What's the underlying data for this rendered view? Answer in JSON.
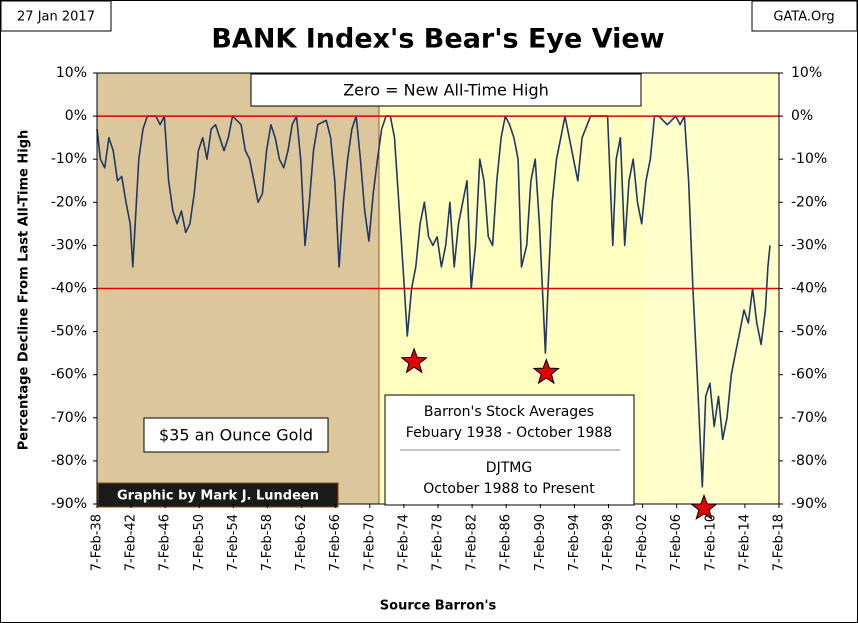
{
  "chart_data": {
    "type": "line",
    "title": "BANK Index's Bear's Eye View",
    "date_stamp": "27 Jan 2017",
    "source_tag": "GATA.Org",
    "ylabel": "Percentage Decline From Last All-Time High",
    "xlabel": "Source Barron's",
    "annotations": [
      "Zero = New All-Time High",
      "$35 an Ounce Gold",
      "Barron's Stock Averages",
      "Febuary 1938 - October 1988",
      "DJTMG",
      "October 1988 to Present",
      "Graphic by Mark J. Lundeen"
    ],
    "xlim": [
      1938.1,
      2018.1
    ],
    "ylim": [
      -90,
      10
    ],
    "xticks": [
      {
        "value": 1938.1,
        "label": "7-Feb-38"
      },
      {
        "value": 1942.1,
        "label": "7-Feb-42"
      },
      {
        "value": 1946.1,
        "label": "7-Feb-46"
      },
      {
        "value": 1950.1,
        "label": "7-Feb-50"
      },
      {
        "value": 1954.1,
        "label": "7-Feb-54"
      },
      {
        "value": 1958.1,
        "label": "7-Feb-58"
      },
      {
        "value": 1962.1,
        "label": "7-Feb-62"
      },
      {
        "value": 1966.1,
        "label": "7-Feb-66"
      },
      {
        "value": 1970.1,
        "label": "7-Feb-70"
      },
      {
        "value": 1974.1,
        "label": "7-Feb-74"
      },
      {
        "value": 1978.1,
        "label": "7-Feb-78"
      },
      {
        "value": 1982.1,
        "label": "7-Feb-82"
      },
      {
        "value": 1986.1,
        "label": "7-Feb-86"
      },
      {
        "value": 1990.1,
        "label": "7-Feb-90"
      },
      {
        "value": 1994.1,
        "label": "7-Feb-94"
      },
      {
        "value": 1998.1,
        "label": "7-Feb-98"
      },
      {
        "value": 2002.1,
        "label": "7-Feb-02"
      },
      {
        "value": 2006.1,
        "label": "7-Feb-06"
      },
      {
        "value": 2010.1,
        "label": "7-Feb-10"
      },
      {
        "value": 2014.1,
        "label": "7-Feb-14"
      },
      {
        "value": 2018.1,
        "label": "7-Feb-18"
      }
    ],
    "yticks": [
      {
        "value": 10,
        "label": "10%"
      },
      {
        "value": 0,
        "label": "0%"
      },
      {
        "value": -10,
        "label": "-10%"
      },
      {
        "value": -20,
        "label": "-20%"
      },
      {
        "value": -30,
        "label": "-30%"
      },
      {
        "value": -40,
        "label": "-40%"
      },
      {
        "value": -50,
        "label": "-50%"
      },
      {
        "value": -60,
        "label": "-60%"
      },
      {
        "value": -70,
        "label": "-70%"
      },
      {
        "value": -80,
        "label": "-80%"
      },
      {
        "value": -90,
        "label": "-90%"
      }
    ],
    "reference_lines": {
      "values": [
        0,
        -40
      ],
      "color": "#e00000"
    },
    "markers": {
      "x": [
        1975.3,
        1990.8,
        2009.3
      ],
      "values": [
        -57,
        -59.5,
        -91
      ],
      "color": "#e00000"
    },
    "x": [
      1938.1,
      1938.5,
      1939,
      1939.5,
      1940,
      1940.5,
      1941,
      1941.5,
      1942,
      1942.3,
      1943,
      1943.5,
      1944,
      1945,
      1945.5,
      1946,
      1946.5,
      1947,
      1947.5,
      1948,
      1948.5,
      1949,
      1949.5,
      1950,
      1950.5,
      1951,
      1951.5,
      1952,
      1953,
      1953.5,
      1954,
      1955,
      1955.5,
      1956,
      1956.5,
      1957,
      1957.5,
      1958,
      1958.5,
      1959,
      1959.5,
      1960,
      1960.5,
      1961,
      1961.5,
      1962,
      1962.5,
      1963,
      1963.5,
      1964,
      1965,
      1965.5,
      1966,
      1966.5,
      1967,
      1967.5,
      1968,
      1968.5,
      1969,
      1969.5,
      1970,
      1970.5,
      1971,
      1971.5,
      1972,
      1972.5,
      1973,
      1973.5,
      1974,
      1974.5,
      1975,
      1975.5,
      1976,
      1976.5,
      1977,
      1977.5,
      1978,
      1978.5,
      1979,
      1979.5,
      1980,
      1980.5,
      1981,
      1981.5,
      1982,
      1982.5,
      1983,
      1983.5,
      1984,
      1984.5,
      1985,
      1985.5,
      1986,
      1986.5,
      1987,
      1987.5,
      1987.9,
      1988.5,
      1989,
      1989.5,
      1990,
      1990.7,
      1991,
      1991.5,
      1992,
      1992.5,
      1993,
      1994,
      1994.5,
      1995,
      1996,
      1997,
      1998,
      1998.6,
      1999,
      1999.5,
      2000,
      2000.5,
      2001,
      2001.5,
      2002,
      2002.5,
      2003,
      2003.5,
      2004,
      2005,
      2006,
      2006.5,
      2007,
      2007.5,
      2008,
      2008.5,
      2009.1,
      2009.5,
      2010,
      2010.5,
      2011,
      2011.5,
      2012,
      2012.5,
      2013,
      2013.5,
      2014,
      2014.5,
      2015,
      2015.5,
      2016,
      2016.5,
      2016.8,
      2017.05
    ],
    "series": [
      {
        "name": "BANK Index",
        "color": "#203864",
        "values": [
          -3,
          -10,
          -12,
          -5,
          -8,
          -15,
          -14,
          -20,
          -25,
          -35,
          -10,
          -3,
          0,
          0,
          -2,
          0,
          -15,
          -22,
          -25,
          -22,
          -27,
          -25,
          -18,
          -8,
          -5,
          -10,
          -3,
          -2,
          -8,
          -5,
          0,
          -2,
          -8,
          -10,
          -15,
          -20,
          -18,
          -8,
          -2,
          -5,
          -10,
          -12,
          -8,
          -2,
          0,
          -10,
          -30,
          -20,
          -8,
          -2,
          -1,
          -5,
          -15,
          -35,
          -20,
          -10,
          -3,
          0,
          -10,
          -22,
          -29,
          -18,
          -10,
          -3,
          0,
          0,
          -5,
          -20,
          -35,
          -51,
          -40,
          -35,
          -25,
          -20,
          -28,
          -30,
          -28,
          -35,
          -30,
          -20,
          -35,
          -25,
          -20,
          -15,
          -40,
          -30,
          -10,
          -15,
          -28,
          -30,
          -15,
          -5,
          0,
          -2,
          -5,
          -10,
          -35,
          -30,
          -15,
          -10,
          -25,
          -55,
          -40,
          -20,
          -10,
          -5,
          0,
          -10,
          -15,
          -5,
          0,
          0,
          0,
          -30,
          -10,
          -5,
          -30,
          -15,
          -10,
          -20,
          -25,
          -15,
          -10,
          0,
          0,
          -2,
          0,
          -2,
          0,
          -15,
          -40,
          -60,
          -86,
          -65,
          -62,
          -72,
          -65,
          -75,
          -70,
          -60,
          -55,
          -50,
          -45,
          -48,
          -40,
          -48,
          -53,
          -45,
          -35,
          -30
        ]
      }
    ]
  }
}
